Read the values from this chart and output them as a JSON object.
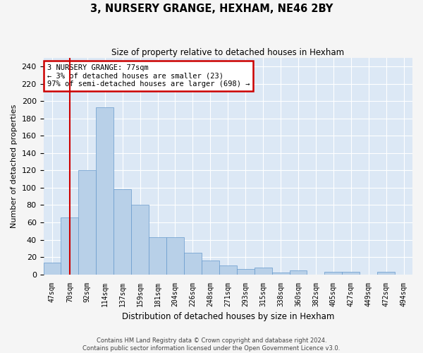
{
  "title": "3, NURSERY GRANGE, HEXHAM, NE46 2BY",
  "subtitle": "Size of property relative to detached houses in Hexham",
  "xlabel": "Distribution of detached houses by size in Hexham",
  "ylabel": "Number of detached properties",
  "bar_color": "#b8d0e8",
  "bar_edge_color": "#6699cc",
  "background_color": "#dce8f5",
  "grid_color": "#ffffff",
  "categories": [
    "47sqm",
    "70sqm",
    "92sqm",
    "114sqm",
    "137sqm",
    "159sqm",
    "181sqm",
    "204sqm",
    "226sqm",
    "248sqm",
    "271sqm",
    "293sqm",
    "315sqm",
    "338sqm",
    "360sqm",
    "382sqm",
    "405sqm",
    "427sqm",
    "449sqm",
    "472sqm",
    "494sqm"
  ],
  "values": [
    14,
    66,
    120,
    193,
    98,
    80,
    43,
    43,
    25,
    16,
    10,
    6,
    8,
    2,
    5,
    0,
    3,
    3,
    0,
    3,
    0
  ],
  "ylim": [
    0,
    250
  ],
  "yticks": [
    0,
    20,
    40,
    60,
    80,
    100,
    120,
    140,
    160,
    180,
    200,
    220,
    240
  ],
  "property_line_index": 1.5,
  "annotation_line1": "3 NURSERY GRANGE: 77sqm",
  "annotation_line2": "← 3% of detached houses are smaller (23)",
  "annotation_line3": "97% of semi-detached houses are larger (698) →",
  "annotation_box_color": "#ffffff",
  "annotation_border_color": "#cc0000",
  "footer_line1": "Contains HM Land Registry data © Crown copyright and database right 2024.",
  "footer_line2": "Contains public sector information licensed under the Open Government Licence v3.0."
}
